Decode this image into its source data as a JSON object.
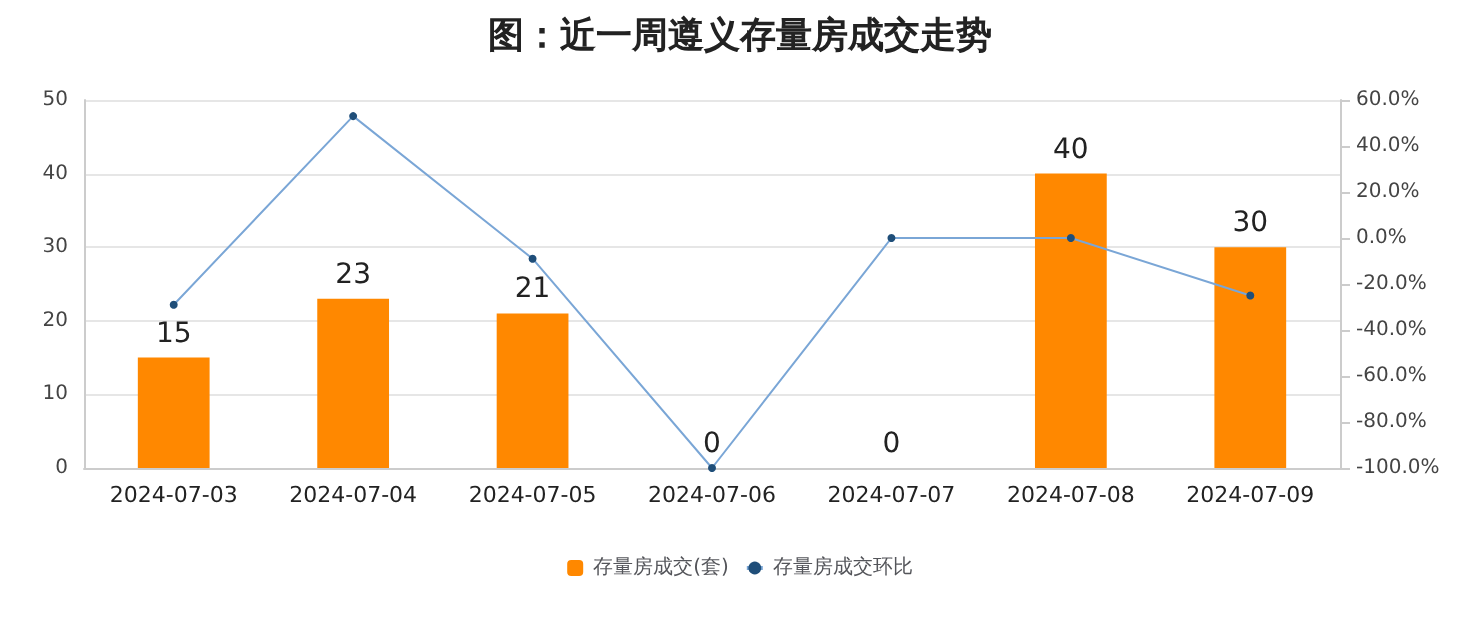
{
  "chart_data": {
    "type": "bar",
    "title": "图：近一周遵义存量房成交走势",
    "categories": [
      "2024-07-03",
      "2024-07-04",
      "2024-07-05",
      "2024-07-06",
      "2024-07-07",
      "2024-07-08",
      "2024-07-09"
    ],
    "series": [
      {
        "name": "存量房成交(套)",
        "color": "#ff8800",
        "values": [
          15,
          23,
          21,
          0,
          0,
          40,
          30
        ],
        "data_labels": true
      },
      {
        "name": "存量房成交环比",
        "type": "line",
        "axis": "y2",
        "color": "#7aa6d6",
        "values": [
          -29,
          53,
          -9,
          -100,
          0,
          0,
          -25
        ]
      }
    ],
    "ylim": [
      0,
      50
    ],
    "yticks": [
      0,
      10,
      20,
      30,
      40,
      50
    ],
    "y2lim": [
      -100,
      60
    ],
    "y2ticks": [
      {
        "value": -100,
        "label": "-100.0%"
      },
      {
        "value": -80,
        "label": "-80.0%"
      },
      {
        "value": -60,
        "label": "-60.0%"
      },
      {
        "value": -40,
        "label": "-40.0%"
      },
      {
        "value": -20,
        "label": "-20.0%"
      },
      {
        "value": 0,
        "label": "0.0%"
      },
      {
        "value": 20,
        "label": "20.0%"
      },
      {
        "value": 40,
        "label": "40.0%"
      },
      {
        "value": 60,
        "label": "60.0%"
      }
    ],
    "grid": "y",
    "legend": "bottom",
    "marker": "circle"
  }
}
